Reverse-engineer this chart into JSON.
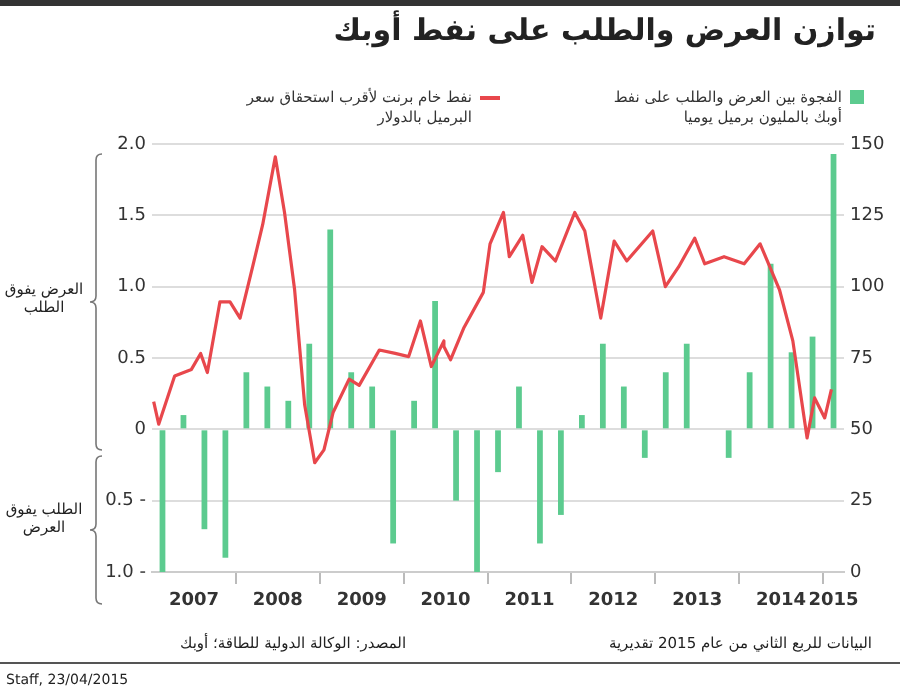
{
  "chart_data": {
    "type": "bar",
    "title": "توازن العرض والطلب على نفط أوبك",
    "x": [
      2007.125,
      2007.375,
      2007.625,
      2007.875,
      2008.125,
      2008.375,
      2008.625,
      2008.875,
      2009.125,
      2009.375,
      2009.625,
      2009.875,
      2010.125,
      2010.375,
      2010.625,
      2010.875,
      2011.125,
      2011.375,
      2011.625,
      2011.875,
      2012.125,
      2012.375,
      2012.625,
      2012.875,
      2013.125,
      2013.375,
      2013.625,
      2013.875,
      2014.125,
      2014.375,
      2014.625,
      2014.875,
      2015.125
    ],
    "xlim": [
      2007,
      2015.25
    ],
    "xticks": [
      {
        "value": 2007.5,
        "label": "2007"
      },
      {
        "value": 2008,
        "label": null
      },
      {
        "value": 2008.5,
        "label": "2008"
      },
      {
        "value": 2009,
        "label": null
      },
      {
        "value": 2009.5,
        "label": "2009"
      },
      {
        "value": 2010,
        "label": null
      },
      {
        "value": 2010.5,
        "label": "2010"
      },
      {
        "value": 2011,
        "label": null
      },
      {
        "value": 2011.5,
        "label": "2011"
      },
      {
        "value": 2012,
        "label": null
      },
      {
        "value": 2012.5,
        "label": "2012"
      },
      {
        "value": 2013,
        "label": null
      },
      {
        "value": 2013.5,
        "label": "2013"
      },
      {
        "value": 2014,
        "label": null
      },
      {
        "value": 2014.5,
        "label": "2014"
      },
      {
        "value": 2015,
        "label": null
      },
      {
        "value": 2015.125,
        "label": "2015"
      }
    ],
    "ylim": [
      -1,
      2
    ],
    "yticks": [
      {
        "value": -1,
        "label": "1.0 -"
      },
      {
        "value": -0.5,
        "label": "0.5 -"
      },
      0,
      0.5,
      {
        "value": 1,
        "label": "1.0"
      },
      1.5,
      {
        "value": 2,
        "label": "2.0"
      }
    ],
    "y2lim": [
      0,
      150
    ],
    "y2ticks": [
      0,
      25,
      50,
      75,
      100,
      125,
      150
    ],
    "series": [
      {
        "name": "الفجوة بين العرض والطلب على نفط أوبك بالمليون برميل يوميا",
        "color": "#5ccb8f",
        "values": [
          -1.0,
          0.1,
          -0.7,
          -0.9,
          0.4,
          0.3,
          0.2,
          0.6,
          1.4,
          0.4,
          0.3,
          -0.8,
          0.2,
          0.9,
          -0.5,
          -1.0,
          -0.3,
          0.3,
          -0.8,
          -0.6,
          0.1,
          0.6,
          0.3,
          -0.2,
          0.4,
          0.6,
          0,
          -0.2,
          0.4,
          1.16,
          0.54,
          0.65,
          1.93
        ]
      },
      {
        "name": "نفط خام برنت لأقرب استحقاق سعر البرميل بالدولار",
        "type": "line",
        "axis": "y2",
        "color": "#e8474c",
        "x": [
          2007.02,
          2007.08,
          2007.27,
          2007.47,
          2007.58,
          2007.66,
          2007.81,
          2007.93,
          2008.05,
          2008.2,
          2008.32,
          2008.47,
          2008.58,
          2008.7,
          2008.82,
          2008.94,
          2009.05,
          2009.16,
          2009.35,
          2009.47,
          2009.71,
          2009.9,
          2010.06,
          2010.2,
          2010.33,
          2010.48,
          2010.48,
          2010.56,
          2010.72,
          2010.95,
          2011.03,
          2011.19,
          2011.26,
          2011.42,
          2011.53,
          2011.65,
          2011.81,
          2012.04,
          2012.16,
          2012.35,
          2012.51,
          2012.66,
          2012.97,
          2013.12,
          2013.28,
          2013.47,
          2013.59,
          2013.82,
          2014.06,
          2014.25,
          2014.48,
          2014.64,
          2014.81,
          2014.9,
          2015.02,
          2015.1
        ],
        "values": [
          59.7,
          51.8,
          68.7,
          71,
          76.6,
          69.9,
          94.7,
          94.7,
          89,
          107,
          121.8,
          145.5,
          126,
          99,
          58.6,
          38.3,
          42.8,
          56,
          67.6,
          65.4,
          77.8,
          76.6,
          75.5,
          88,
          72,
          81,
          79,
          74.4,
          85.7,
          98,
          115,
          126,
          110.5,
          118,
          101.5,
          114,
          109,
          126,
          119.5,
          89,
          116,
          109,
          119.5,
          100,
          107,
          117,
          108,
          110.5,
          108,
          115,
          99,
          81,
          47,
          61,
          54,
          64
        ]
      }
    ],
    "grid": "y",
    "legend": "top",
    "annotations": [
      "العرض يفوق الطلب",
      "الطلب يفوق العرض",
      "المصدر: الوكالة الدولية للطاقة؛ أوبك",
      "البيانات للربع الثاني من عام 2015 تقديرية",
      "Staff, 23/04/2015"
    ]
  }
}
